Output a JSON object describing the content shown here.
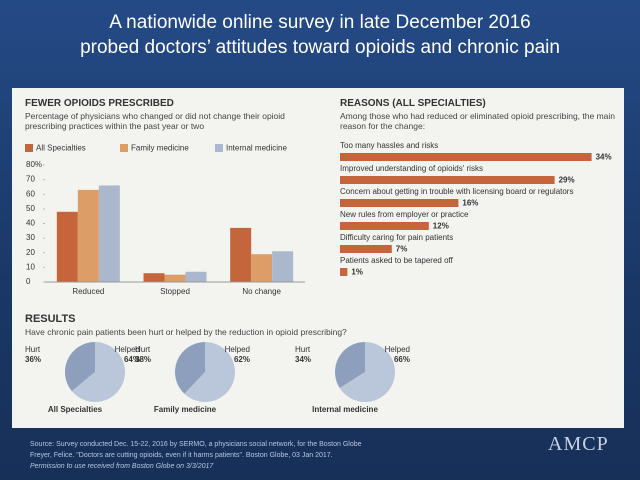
{
  "slide": {
    "title_lines": [
      "A nationwide online survey in late December 2016",
      "probed doctors’ attitudes toward opioids and chronic pain"
    ]
  },
  "chart_data": [
    {
      "type": "bar",
      "title": "FEWER OPIOIDS PRESCRIBED",
      "subtitle": "Percentage of physicians who changed or did not change their opioid prescribing practices within the past year or two",
      "categories": [
        "Reduced",
        "Stopped",
        "No change"
      ],
      "series": [
        {
          "name": "All Specialties",
          "color": "#c4653b",
          "values": [
            48,
            6,
            37
          ]
        },
        {
          "name": "Family medicine",
          "color": "#dd9d66",
          "values": [
            63,
            5,
            19
          ]
        },
        {
          "name": "Internal medicine",
          "color": "#aab7cc",
          "values": [
            66,
            7,
            21
          ]
        }
      ],
      "ylim": [
        0,
        80
      ],
      "yticks": [
        0,
        10,
        20,
        30,
        40,
        50,
        60,
        70,
        {
          "value": 80,
          "label": "80%"
        }
      ]
    },
    {
      "type": "hbar",
      "title": "REASONS (ALL SPECIALTIES)",
      "subtitle": "Among those who had reduced or eliminated opioid prescribing, the main reason for the change:",
      "categories": [
        "Too many hassles and risks",
        "Improved understanding of opioids' risks",
        "Concern about getting in trouble with licensing board or regulators",
        "New rules from employer or practice",
        "Difficulty caring for pain patients",
        "Patients asked to be tapered off"
      ],
      "values": [
        34,
        29,
        16,
        12,
        7,
        1
      ],
      "value_labels": [
        "34%",
        "29%",
        "16%",
        "12%",
        "7%",
        "1%"
      ],
      "color": "#c4653b"
    },
    {
      "type": "pie",
      "title": "RESULTS",
      "subtitle": "Have chronic pain patients been hurt or helped by the reduction in opioid prescribing?",
      "categories": [
        "Hurt",
        "Helped"
      ],
      "colors": [
        "#8d9fbd",
        "#bac6da"
      ],
      "pies": [
        {
          "name": "All Specialties",
          "values": [
            36,
            64
          ],
          "value_labels": [
            "36%",
            "64%"
          ]
        },
        {
          "name": "Family medicine",
          "values": [
            38,
            62
          ],
          "value_labels": [
            "38%",
            "62%"
          ]
        },
        {
          "name": "Internal medicine",
          "values": [
            34,
            66
          ],
          "value_labels": [
            "34%",
            "66%"
          ]
        }
      ]
    }
  ],
  "footer": {
    "source_lines": [
      "Source: Survey conducted Dec. 15-22, 2016 by SERMO, a physicians social network, for the Boston Globe",
      "Freyer, Felice. \"Doctors are cutting opioids, even if it harms patients\". Boston Globe, 03 Jan 2017.",
      "Permission to use received from Boston Globe on 3/3/2017"
    ],
    "logo": "AMCP"
  }
}
